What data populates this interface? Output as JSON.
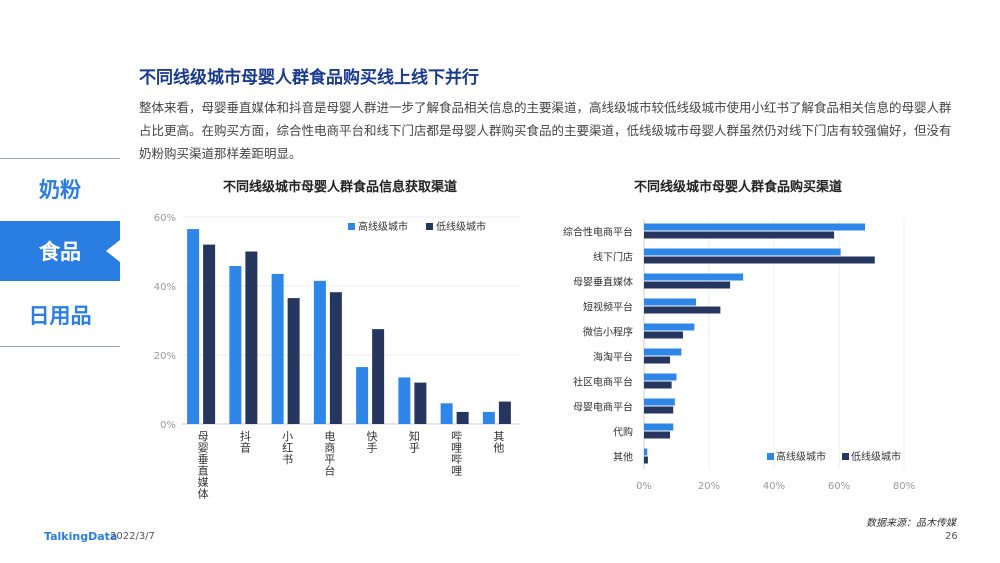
{
  "title": "不同线级城市母婴人群食品购买线上线下并行",
  "intro": "整体来看，母婴垂直媒体和抖音是母婴人群进一步了解食品相关信息的主要渠道，高线级城市较低线级城市使用小红书了解食品相关信息的母婴人群占比更高。在购买方面，综合性电商平台和线下门店都是母婴人群购买食品的主要渠道，低线级城市母婴人群虽然仍对线下门店有较强偏好，但没有奶粉购买渠道那样差距明显。",
  "nav": {
    "items": [
      "奶粉",
      "食品",
      "日用品"
    ],
    "active_index": 1
  },
  "footer": {
    "logo": "TalkingData",
    "date": "2022/3/7",
    "page": "26",
    "source": "数据来源：品木传媒"
  },
  "colors": {
    "high_tier": "#2f86e9",
    "low_tier": "#27365f",
    "accent": "#2a7de1",
    "title": "#1a3a8f"
  },
  "chart_data": [
    {
      "type": "bar",
      "title": "不同线级城市母婴人群食品信息获取渠道",
      "categories": [
        "母婴垂直媒体",
        "抖音",
        "小红书",
        "电商平台",
        "快手",
        "知乎",
        "哔哩哔哩",
        "其他"
      ],
      "ylim": [
        0,
        60
      ],
      "yticks": [
        "0%",
        "20%",
        "40%",
        "60%"
      ],
      "legend_position": "top-right",
      "series": [
        {
          "name": "高线级城市",
          "values": [
            56.5,
            45.8,
            43.5,
            41.5,
            16.5,
            13.5,
            6.0,
            3.5
          ]
        },
        {
          "name": "低线级城市",
          "values": [
            52.0,
            50.0,
            36.5,
            38.2,
            27.5,
            12.0,
            3.5,
            6.5
          ]
        }
      ]
    },
    {
      "type": "bar",
      "orientation": "horizontal",
      "title": "不同线级城市母婴人群食品购买渠道",
      "categories": [
        "综合性电商平台",
        "线下门店",
        "母婴垂直媒体",
        "短视频平台",
        "微信小程序",
        "海淘平台",
        "社区电商平台",
        "母婴电商平台",
        "代购",
        "其他"
      ],
      "xlim": [
        0,
        80
      ],
      "xticks": [
        "0%",
        "20%",
        "40%",
        "60%",
        "80%"
      ],
      "legend_position": "bottom-right",
      "series": [
        {
          "name": "高线级城市",
          "values": [
            68.0,
            60.5,
            30.5,
            16.0,
            15.5,
            11.5,
            10.0,
            9.5,
            9.0,
            1.0
          ]
        },
        {
          "name": "低线级城市",
          "values": [
            58.5,
            71.0,
            26.5,
            23.5,
            12.0,
            8.0,
            8.5,
            9.0,
            8.0,
            1.2
          ]
        }
      ]
    }
  ]
}
